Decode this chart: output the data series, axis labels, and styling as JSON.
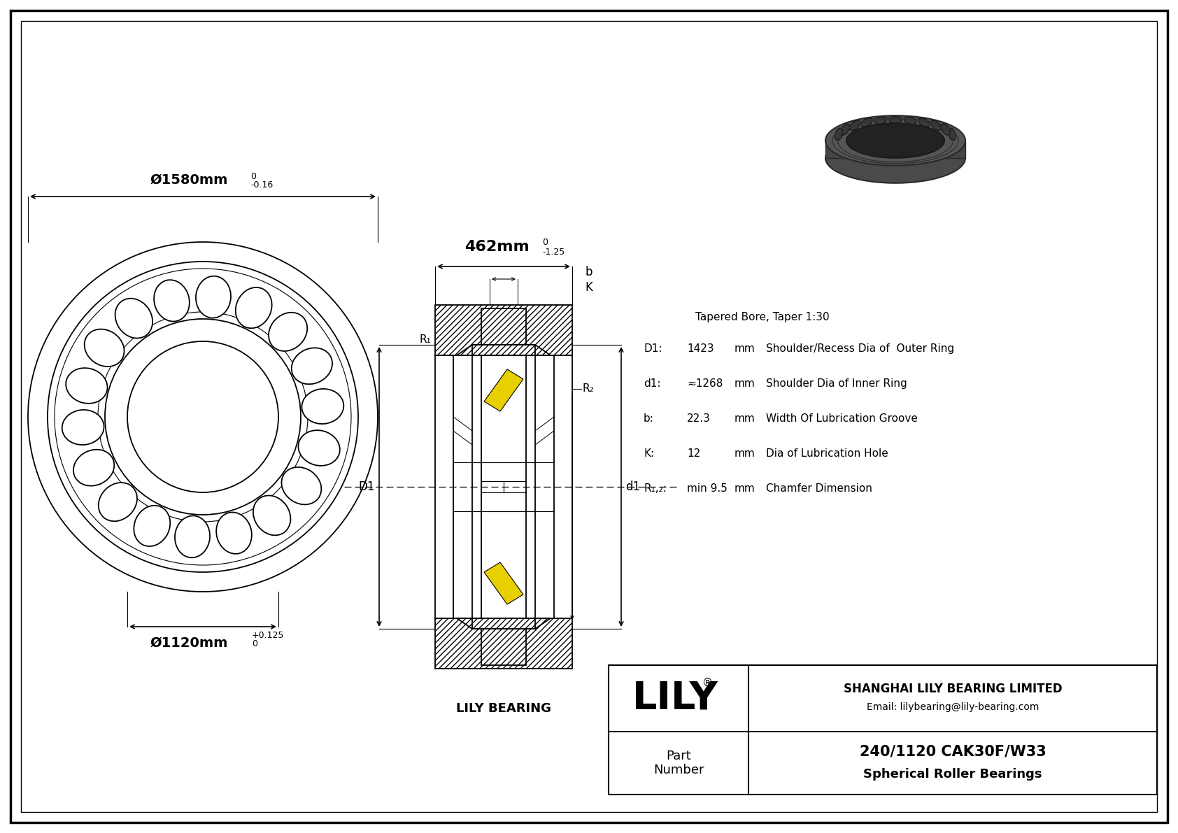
{
  "bg_color": "#ffffff",
  "border_color": "#000000",
  "outer_dia": "Ø1580mm",
  "outer_tol_top": "0",
  "outer_tol_bot": "-0.16",
  "inner_dia": "Ø1120mm",
  "inner_tol_top": "+0.125",
  "inner_tol_bot": "0",
  "width_dim": "462mm",
  "width_tol_top": "0",
  "width_tol_bot": "-1.25",
  "specs_title": "Tapered Bore, Taper 1:30",
  "D1_label": "D1:",
  "D1_val": "1423",
  "D1_unit": "mm",
  "D1_desc": "Shoulder/Recess Dia of  Outer Ring",
  "d1_label": "d1:",
  "d1_val": "≈1268",
  "d1_unit": "mm",
  "d1_desc": "Shoulder Dia of Inner Ring",
  "b_label": "b:",
  "b_val": "22.3",
  "b_unit": "mm",
  "b_desc": "Width Of Lubrication Groove",
  "K_label": "K:",
  "K_val": "12",
  "K_unit": "mm",
  "K_desc": "Dia of Lubrication Hole",
  "R_label": "R₁,₂:",
  "R_val": "min 9.5",
  "R_unit": "mm",
  "R_desc": "Chamfer Dimension",
  "lily_bearing_label": "LILY BEARING",
  "company_name": "SHANGHAI LILY BEARING LIMITED",
  "email": "Email: lilybearing@lily-bearing.com",
  "part_label": "Part\nNumber",
  "part_number": "240/1120 CAK30F/W33",
  "part_type": "Spherical Roller Bearings",
  "lily_logo": "LILY",
  "registered": "®"
}
